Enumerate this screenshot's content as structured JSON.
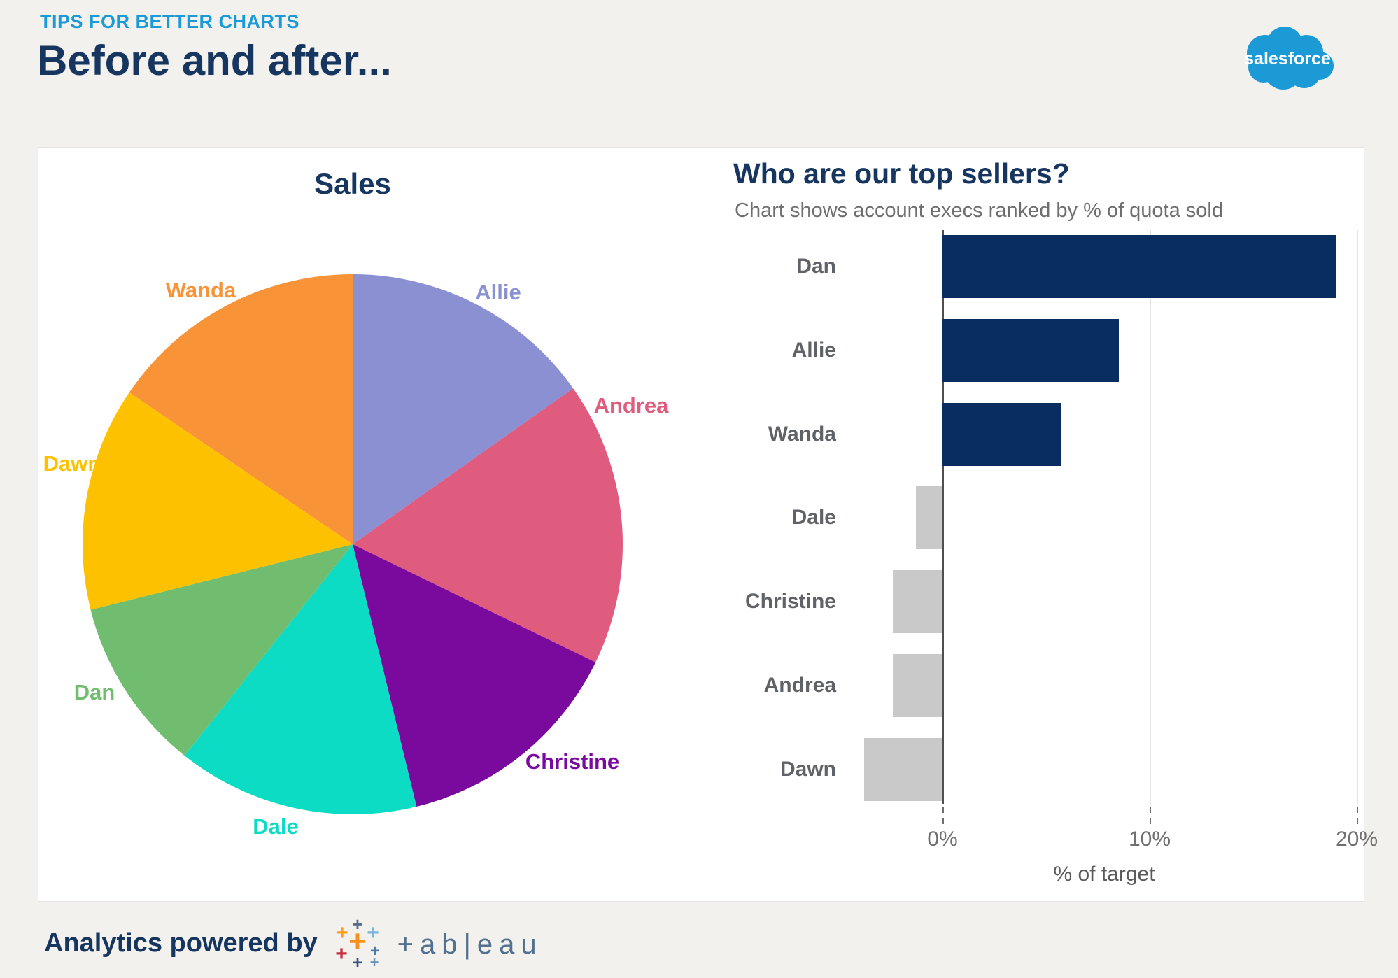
{
  "page": {
    "eyebrow": "TIPS FOR BETTER CHARTS",
    "title": "Before and after...",
    "background_color": "#f2f1ee",
    "accent_blue": "#1a9bd7",
    "navy": "#16355f"
  },
  "salesforce_logo": {
    "text": "salesforce",
    "cloud_color": "#1b9ad6"
  },
  "footer": {
    "text": "Analytics powered by",
    "tableau_wordmark": "+ab|eau"
  },
  "chart_data": [
    {
      "type": "pie",
      "title": "Sales",
      "categories": [
        "Allie",
        "Andrea",
        "Christine",
        "Dale",
        "Dan",
        "Dawn",
        "Wanda"
      ],
      "values": [
        15.2,
        17.0,
        14.0,
        14.5,
        10.4,
        13.4,
        15.5
      ],
      "unit": "percent of total sales (estimated from slice angles)",
      "colors": {
        "Allie": "#8b90d2",
        "Andrea": "#e05c7e",
        "Christine": "#7a099e",
        "Dale": "#0cdcc3",
        "Dan": "#71bd70",
        "Dawn": "#fdc100",
        "Wanda": "#f99338"
      },
      "legend_position": "labels outside slices"
    },
    {
      "type": "bar",
      "orientation": "horizontal",
      "title": "Who are our top sellers?",
      "subtitle": "Chart shows account execs ranked by % of quota sold",
      "categories": [
        "Dan",
        "Allie",
        "Wanda",
        "Dale",
        "Christine",
        "Andrea",
        "Dawn"
      ],
      "values": [
        19,
        8.5,
        5.7,
        -1.3,
        -2.4,
        -2.4,
        -3.8
      ],
      "xlabel": "% of target",
      "x_ticks": [
        {
          "value": 0,
          "label": "0%"
        },
        {
          "value": 10,
          "label": "10%"
        },
        {
          "value": 20,
          "label": "20%"
        }
      ],
      "xlim": [
        -4.5,
        20.5
      ],
      "grid": true,
      "positive_color": "#082d60",
      "negative_color": "#c9c9c9"
    }
  ]
}
